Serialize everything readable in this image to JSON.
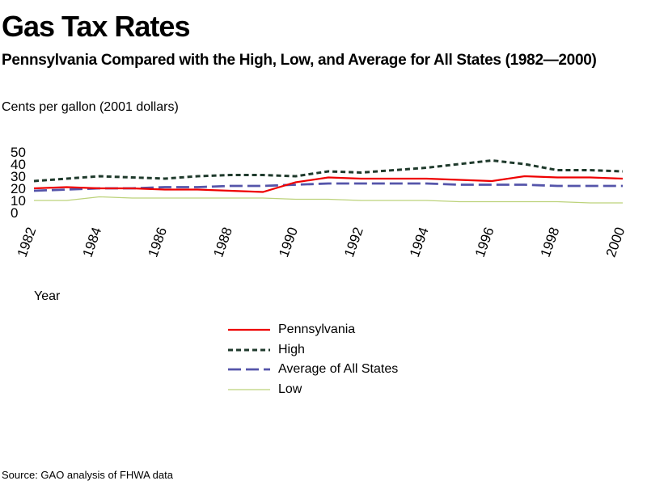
{
  "title": "Gas Tax Rates",
  "subtitle": "Pennsylvania Compared with the High, Low, and Average for All States (1982—2000)",
  "unit_label": "Cents per gallon (2001 dollars)",
  "source": "Source: GAO analysis of FHWA data",
  "chart_data": {
    "type": "line",
    "xlabel": "Year",
    "ylabel": "Cents per gallon (2001 dollars)",
    "ylim": [
      0,
      50
    ],
    "xlim": [
      1982,
      2000
    ],
    "yticks": [
      "0",
      "10",
      "20",
      "30",
      "40",
      "50"
    ],
    "xticks": [
      "1982",
      "1984",
      "1986",
      "1988",
      "1990",
      "1992",
      "1994",
      "1996",
      "1998",
      "2000"
    ],
    "legend_position": "bottom-center",
    "x": [
      1982,
      1983,
      1984,
      1985,
      1986,
      1987,
      1988,
      1989,
      1990,
      1991,
      1992,
      1993,
      1994,
      1995,
      1996,
      1997,
      1998,
      1999,
      2000
    ],
    "series": [
      {
        "name": "Pennsylvania",
        "color": "#ee0000",
        "dash": "solid",
        "values": [
          20,
          21,
          20,
          20,
          19,
          19,
          18,
          17,
          25,
          29,
          28,
          28,
          28,
          27,
          26,
          30,
          29,
          29,
          28
        ]
      },
      {
        "name": "High",
        "color": "#1f3a2c",
        "dash": "dotted",
        "values": [
          26,
          28,
          30,
          29,
          28,
          30,
          31,
          31,
          30,
          34,
          33,
          35,
          37,
          40,
          43,
          40,
          35,
          35,
          34
        ]
      },
      {
        "name": "Average of All States",
        "color": "#5555aa",
        "dash": "dashed",
        "values": [
          18,
          19,
          20,
          20,
          21,
          21,
          22,
          22,
          23,
          24,
          24,
          24,
          24,
          23,
          23,
          23,
          22,
          22,
          22
        ]
      },
      {
        "name": "Low",
        "color": "#bcd27a",
        "dash": "solid",
        "values": [
          10,
          10,
          13,
          12,
          12,
          12,
          12,
          12,
          11,
          11,
          10,
          10,
          10,
          9,
          9,
          9,
          9,
          8,
          8
        ]
      }
    ]
  }
}
